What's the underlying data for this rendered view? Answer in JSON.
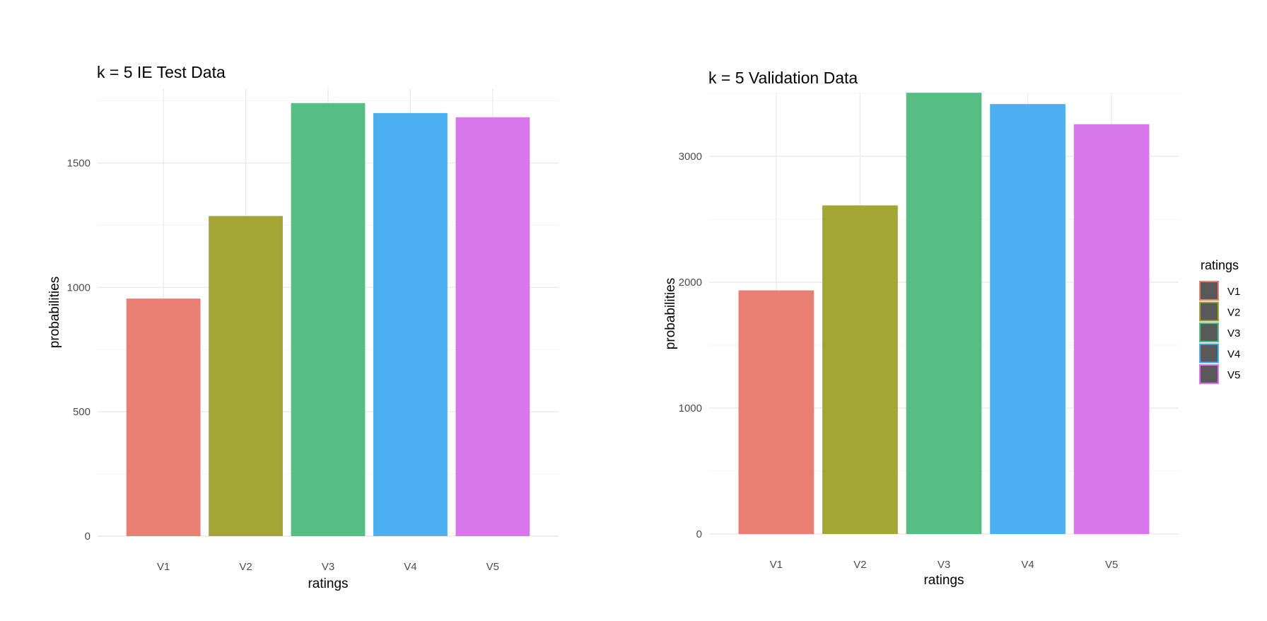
{
  "chart_data": [
    {
      "type": "bar",
      "title": "k = 5 IE Test Data",
      "xlabel": "ratings",
      "ylabel": "probabilities",
      "categories": [
        "V1",
        "V2",
        "V3",
        "V4",
        "V5"
      ],
      "values": [
        955,
        1287,
        1741,
        1701,
        1684
      ],
      "ylim": [
        0,
        1800
      ],
      "yticks": [
        0,
        500,
        1000,
        1500
      ],
      "grid": true,
      "colors": [
        "#e97e72",
        "#a3a535",
        "#56bd83",
        "#4cafef",
        "#d777eb"
      ]
    },
    {
      "type": "bar",
      "title": "k = 5 Validation Data",
      "xlabel": "ratings",
      "ylabel": "probabilities",
      "categories": [
        "V1",
        "V2",
        "V3",
        "V4",
        "V5"
      ],
      "values": [
        1935,
        2610,
        3505,
        3415,
        3255
      ],
      "ylim": [
        0,
        3500
      ],
      "yticks": [
        0,
        1000,
        2000,
        3000
      ],
      "grid": true,
      "colors": [
        "#e97e72",
        "#a3a535",
        "#56bd83",
        "#4cafef",
        "#d777eb"
      ]
    }
  ],
  "legend": {
    "title": "ratings",
    "placement": "right",
    "items": [
      "V1",
      "V2",
      "V3",
      "V4",
      "V5"
    ],
    "colors": [
      "#e97e72",
      "#a3a535",
      "#56bd83",
      "#4cafef",
      "#d777eb"
    ],
    "fill": "#595959"
  },
  "theme": {
    "grid_major": "#ebebeb",
    "grid_minor": "#f3f3f3",
    "tick_text": "#4d4d4d"
  }
}
